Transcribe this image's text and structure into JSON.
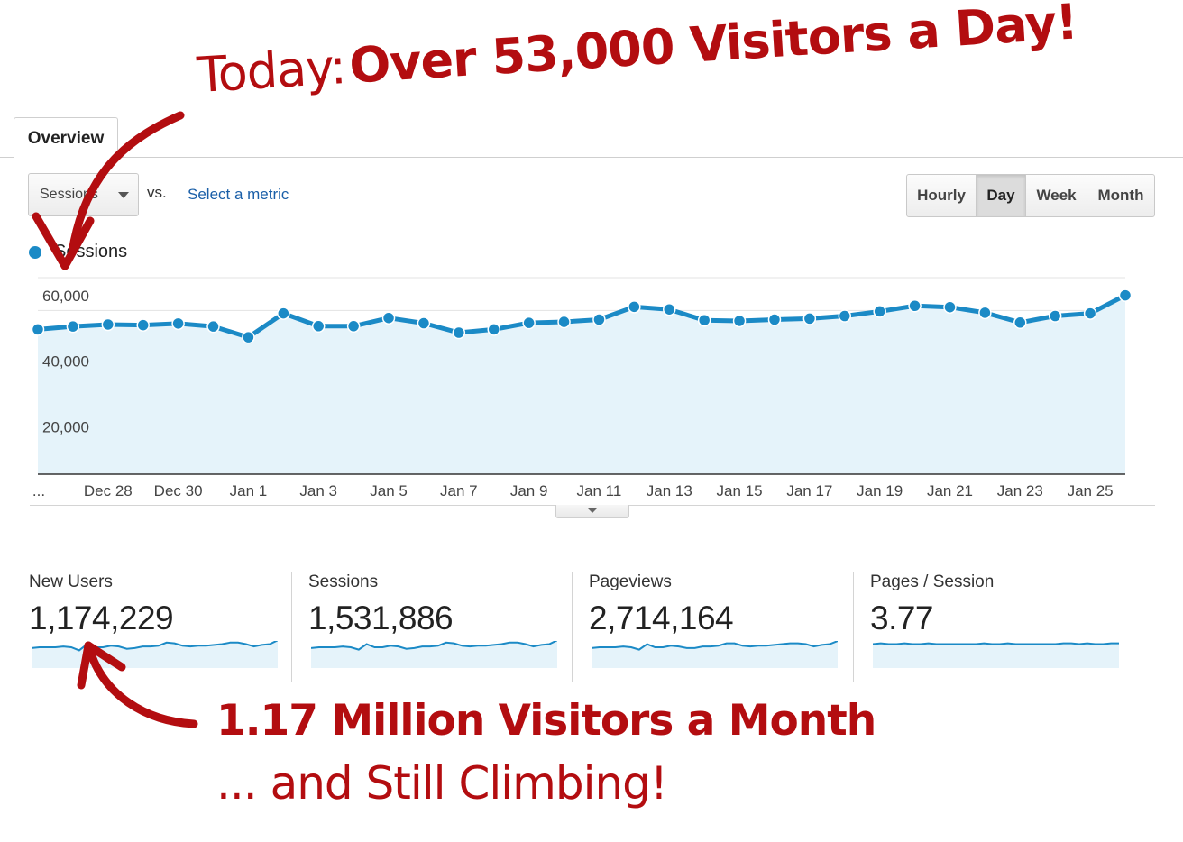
{
  "annotations": {
    "top_prefix": "Today:",
    "top_emphasis": "Over 53,000 Visitors a Day!",
    "bottom_line1": "1.17 Million Visitors a Month",
    "bottom_line2": "... and Still Climbing!"
  },
  "tabs": [
    {
      "label": "Overview",
      "active": true
    }
  ],
  "metric_select": {
    "value": "Sessions"
  },
  "vs_label": "vs.",
  "select_metric_link": "Select a metric",
  "granularity": {
    "options": [
      "Hourly",
      "Day",
      "Week",
      "Month"
    ],
    "selected": "Day"
  },
  "legend": {
    "label": "Sessions",
    "color": "#1b8ac6"
  },
  "chart_data": {
    "type": "area",
    "series": [
      {
        "name": "Sessions",
        "values": [
          44200,
          45100,
          45700,
          45500,
          46000,
          45100,
          41800,
          49100,
          45200,
          45200,
          47700,
          46100,
          43200,
          44200,
          46200,
          46500,
          47200,
          51100,
          50300,
          47000,
          46800,
          47200,
          47500,
          48300,
          49700,
          51400,
          51000,
          49300,
          46300,
          48300,
          49100,
          54600
        ]
      }
    ],
    "x": [
      "Dec 26",
      "Dec 27",
      "Dec 28",
      "Dec 29",
      "Dec 30",
      "Dec 31",
      "Jan 1",
      "Jan 2",
      "Jan 3",
      "Jan 4",
      "Jan 5",
      "Jan 6",
      "Jan 7",
      "Jan 8",
      "Jan 9",
      "Jan 10",
      "Jan 11",
      "Jan 12",
      "Jan 13",
      "Jan 14",
      "Jan 15",
      "Jan 16",
      "Jan 17",
      "Jan 18",
      "Jan 19",
      "Jan 20",
      "Jan 21",
      "Jan 22",
      "Jan 23",
      "Jan 24",
      "Jan 25",
      "Jan 26"
    ],
    "x_tick_labels": [
      "...",
      "Dec 28",
      "Dec 30",
      "Jan 1",
      "Jan 3",
      "Jan 5",
      "Jan 7",
      "Jan 9",
      "Jan 11",
      "Jan 13",
      "Jan 15",
      "Jan 17",
      "Jan 19",
      "Jan 21",
      "Jan 23",
      "Jan 25"
    ],
    "y_tick_labels": [
      "60,000",
      "40,000",
      "20,000"
    ],
    "ylim": [
      0,
      60000
    ],
    "grid": true,
    "line_color": "#1b8ac6",
    "fill_color": "#e5f3fa"
  },
  "scorecards": [
    {
      "label": "New Users",
      "value": "1,174,229",
      "sparkline": [
        44,
        45,
        45,
        45,
        46,
        45,
        41,
        49,
        45,
        45,
        47,
        46,
        43,
        44,
        46,
        46,
        47,
        51,
        50,
        47,
        46,
        47,
        47,
        48,
        49,
        51,
        51,
        49,
        46,
        48,
        49,
        54
      ]
    },
    {
      "label": "Sessions",
      "value": "1,531,886",
      "sparkline": [
        44,
        45,
        45,
        45,
        46,
        45,
        42,
        49,
        45,
        45,
        47,
        46,
        43,
        44,
        46,
        46,
        47,
        51,
        50,
        47,
        46,
        47,
        47,
        48,
        49,
        51,
        51,
        49,
        46,
        48,
        49,
        54
      ]
    },
    {
      "label": "Pageviews",
      "value": "2,714,164",
      "sparkline": [
        44,
        45,
        45,
        45,
        46,
        45,
        42,
        49,
        45,
        45,
        47,
        46,
        44,
        44,
        46,
        46,
        47,
        50,
        50,
        47,
        46,
        47,
        47,
        48,
        49,
        50,
        50,
        49,
        46,
        48,
        49,
        53
      ]
    },
    {
      "label": "Pages / Session",
      "value": "3.77",
      "sparkline": [
        49,
        50,
        49,
        49,
        50,
        49,
        49,
        50,
        49,
        49,
        49,
        49,
        49,
        49,
        50,
        49,
        49,
        50,
        49,
        49,
        49,
        49,
        49,
        49,
        50,
        50,
        49,
        50,
        49,
        49,
        50,
        50
      ]
    }
  ],
  "colors": {
    "accent_red": "#b30d10",
    "link": "#1a5fa8"
  }
}
